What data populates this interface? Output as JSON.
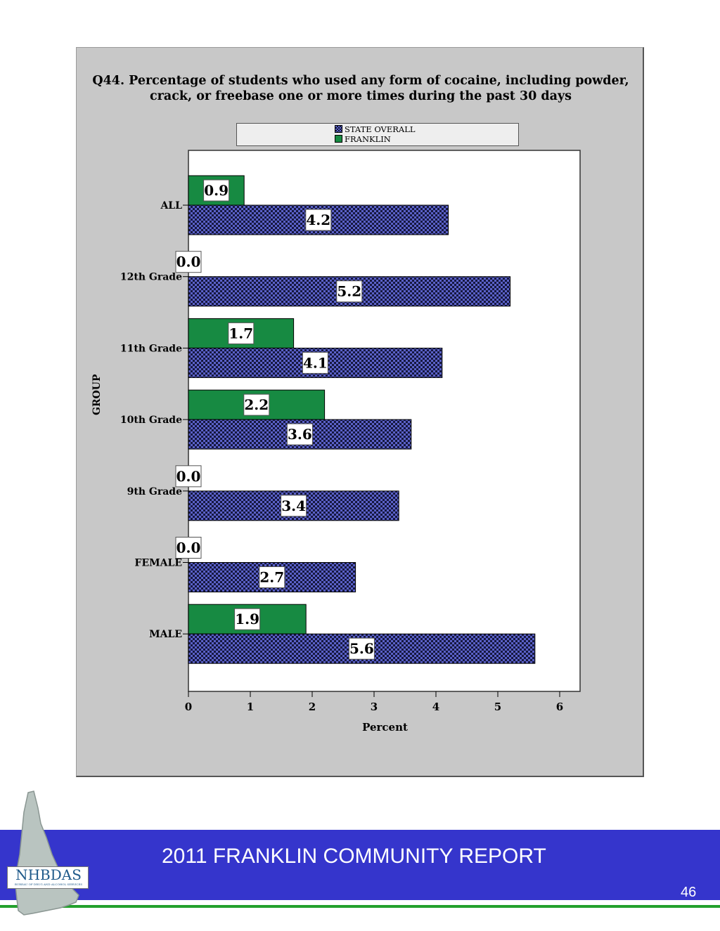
{
  "chart_data": {
    "type": "bar",
    "orientation": "horizontal",
    "title_lines": [
      "Q44. Percentage of students who used any form of cocaine, including powder,",
      "crack, or freebase one or more times during the past 30 days"
    ],
    "xlabel": "Percent",
    "ylabel": "GROUP",
    "categories": [
      "ALL",
      "12th Grade",
      "11th Grade",
      "10th Grade",
      "9th Grade",
      "FEMALE",
      "MALE"
    ],
    "series": [
      {
        "name": "FRANKLIN",
        "color": "#178a42",
        "values": [
          0.9,
          0.0,
          1.7,
          2.2,
          0.0,
          0.0,
          1.9
        ],
        "labels": [
          "0.9",
          "0.0",
          "1.7",
          "2.2",
          "0.0",
          "0.0",
          "1.9"
        ]
      },
      {
        "name": "STATE OVERALL",
        "color": "#3a3f8f",
        "pattern": "checkered",
        "values": [
          4.2,
          5.2,
          4.1,
          3.6,
          3.4,
          2.7,
          5.6
        ],
        "labels": [
          "4.2",
          "5.2",
          "4.1",
          "3.6",
          "3.4",
          "2.7",
          "5.6"
        ]
      }
    ],
    "xlim": [
      0,
      6.3
    ],
    "xticks": [
      0,
      1,
      2,
      3,
      4,
      5,
      6
    ],
    "xtick_labels": [
      "0",
      "1",
      "2",
      "3",
      "4",
      "5",
      "6"
    ],
    "grid": false,
    "legend_position": "top"
  },
  "footer": {
    "report_title": "2011 FRANKLIN COMMUNITY REPORT",
    "page_number": "46",
    "logo_text": "NHBDAS",
    "logo_subtext": "BUREAU OF DRUG AND ALCOHOL SERVICES",
    "colors": {
      "band": "#3535cc",
      "line": "#22a02c"
    }
  }
}
